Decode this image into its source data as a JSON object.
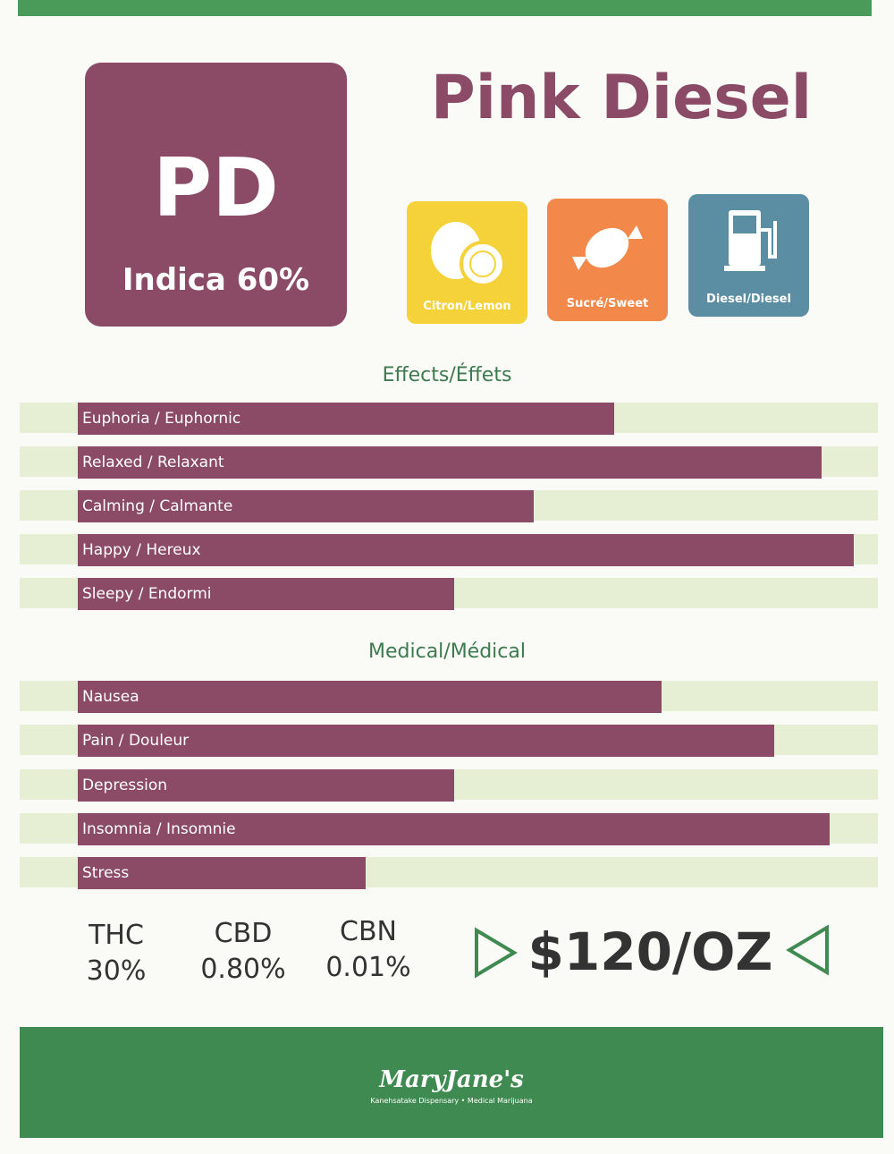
{
  "header": {
    "code": "PD",
    "strain": "Indica 60%",
    "title": "Pink Diesel"
  },
  "flavors": [
    "Citron/Lemon",
    "Sucré/Sweet",
    "Diesel/Diesel"
  ],
  "effects": {
    "title": "Effects/Éffets",
    "items": [
      {
        "label": "Euphoria / Euphornic",
        "value": 0.67
      },
      {
        "label": "Relaxed / Relaxant",
        "value": 0.93
      },
      {
        "label": "Calming / Calmante",
        "value": 0.57
      },
      {
        "label": "Happy / Hereux",
        "value": 0.97
      },
      {
        "label": "Sleepy / Endormi",
        "value": 0.47
      }
    ]
  },
  "medical": {
    "title": "Medical/Médical",
    "items": [
      {
        "label": "Nausea",
        "value": 0.73
      },
      {
        "label": "Pain / Douleur",
        "value": 0.87
      },
      {
        "label": "Depression",
        "value": 0.47
      },
      {
        "label": "Insomnia / Insomnie",
        "value": 0.94
      },
      {
        "label": "Stress",
        "value": 0.36
      }
    ]
  },
  "cannabinoids": [
    {
      "name": "THC",
      "value": "30%"
    },
    {
      "name": "CBD",
      "value": "0.80%"
    },
    {
      "name": "CBN",
      "value": "0.01%"
    }
  ],
  "price": "$120/OZ",
  "footer": {
    "brand": "MaryJane's",
    "tagline": "Kanehsatake Dispensary • Medical Marijuana"
  }
}
